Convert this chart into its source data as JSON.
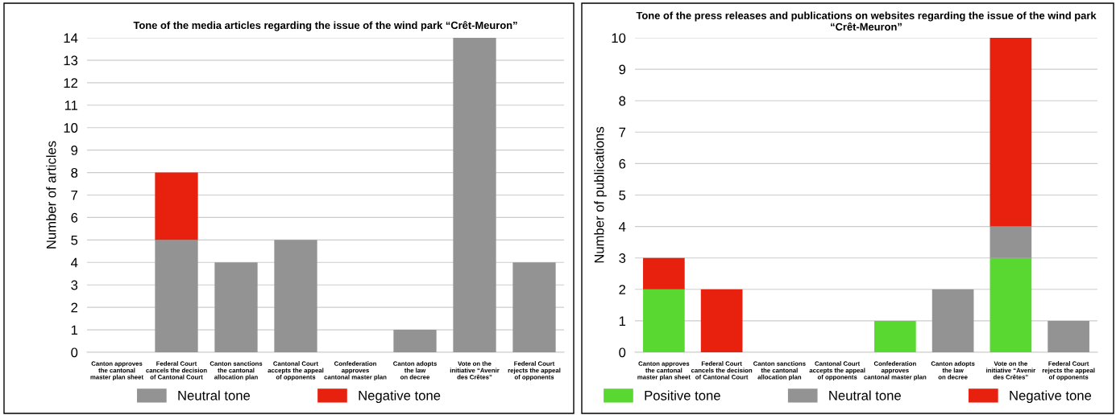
{
  "chart_data": [
    {
      "type": "bar",
      "stacked": true,
      "title": "Tone of the media articles regarding the issue of the wind park “Crêt-Meuron”",
      "ylabel": "Number of articles",
      "categories": [
        "Canton approves\nthe cantonal\nmaster plan sheet",
        "Federal Court\ncancels the decision\nof Cantonal Court",
        "Canton sanctions\nthe cantonal\nallocation plan",
        "Cantonal Court\naccepts the appeal\nof opponents",
        "Confederation\napproves\ncantonal master plan",
        "Canton adopts\nthe law\non decree",
        "Vote on the\ninitiative “Avenir\ndes Crêtes”",
        "Federal Court\nrejects the appeal\nof opponents"
      ],
      "series": [
        {
          "name": "Neutral tone",
          "color": "#939393",
          "values": [
            0,
            5,
            4,
            5,
            0,
            1,
            14,
            4
          ]
        },
        {
          "name": "Negative tone",
          "color": "#e8200e",
          "values": [
            0,
            3,
            0,
            0,
            0,
            0,
            0,
            0
          ]
        }
      ],
      "ylim": [
        0,
        14
      ],
      "yticks": [
        0,
        1,
        2,
        3,
        4,
        5,
        6,
        7,
        8,
        9,
        10,
        11,
        12,
        13,
        14
      ],
      "grid": "y",
      "legend": "bottom"
    },
    {
      "type": "bar",
      "stacked": true,
      "title": "Tone of the press releases and publications on websites regarding the issue of the wind park “Crêt-Meuron”",
      "ylabel": "Number of publications",
      "categories": [
        "Canton approves\nthe cantonal\nmaster plan sheet",
        "Federal Court\ncancels the decision\nof Cantonal Court",
        "Canton sanctions\nthe cantonal\nallocation plan",
        "Cantonal Court\naccepts the appeal\nof opponents",
        "Confederation\napproves\ncantonal master plan",
        "Canton adopts\nthe law\non decree",
        "Vote on the\ninitiative “Avenir\ndes Crêtes”",
        "Federal Court\nrejects the appeal\nof opponents"
      ],
      "series": [
        {
          "name": "Positive tone",
          "color": "#5ad832",
          "values": [
            2,
            0,
            0,
            0,
            1,
            0,
            3,
            0
          ]
        },
        {
          "name": "Neutral tone",
          "color": "#939393",
          "values": [
            0,
            0,
            0,
            0,
            0,
            2,
            1,
            1
          ]
        },
        {
          "name": "Negative tone",
          "color": "#e8200e",
          "values": [
            1,
            2,
            0,
            0,
            0,
            0,
            6,
            0
          ]
        }
      ],
      "ylim": [
        0,
        10
      ],
      "yticks": [
        0,
        1,
        2,
        3,
        4,
        5,
        6,
        7,
        8,
        9,
        10
      ],
      "grid": "y",
      "legend": "bottom"
    }
  ]
}
